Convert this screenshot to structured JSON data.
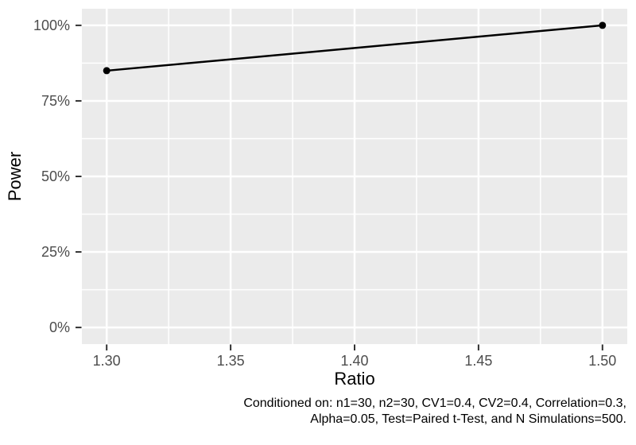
{
  "chart_data": {
    "type": "line",
    "title": "",
    "xlabel": "Ratio",
    "ylabel": "Power",
    "series": [
      {
        "name": "power",
        "points": [
          {
            "x": 1.3,
            "y_pct": 85
          },
          {
            "x": 1.5,
            "y_pct": 100
          }
        ]
      }
    ],
    "x_ticks": [
      {
        "value": 1.3,
        "label": "1.30"
      },
      {
        "value": 1.35,
        "label": "1.35"
      },
      {
        "value": 1.4,
        "label": "1.40"
      },
      {
        "value": 1.45,
        "label": "1.45"
      },
      {
        "value": 1.5,
        "label": "1.50"
      }
    ],
    "y_ticks": [
      {
        "value": 0,
        "label": "0%"
      },
      {
        "value": 25,
        "label": "25%"
      },
      {
        "value": 50,
        "label": "50%"
      },
      {
        "value": 75,
        "label": "75%"
      },
      {
        "value": 100,
        "label": "100%"
      }
    ],
    "x_minor": [
      1.325,
      1.375,
      1.425,
      1.475
    ],
    "y_minor": [
      12.5,
      37.5,
      62.5,
      87.5
    ],
    "xlim": [
      1.29,
      1.51
    ],
    "ylim_pct": [
      -5.5,
      105.5
    ],
    "grid": "major+minor",
    "legend": "none",
    "caption_line1": "Conditioned on: n1=30, n2=30, CV1=0.4, CV2=0.4, Correlation=0.3,",
    "caption_line2": "Alpha=0.05, Test=Paired t-Test, and N Simulations=500."
  },
  "colors": {
    "page_background": "#FFFFFF",
    "panel_background": "#EBEBEB",
    "grid_line": "#FFFFFF",
    "tick_mark": "#333333",
    "tick_text": "#4D4D4D",
    "axis_title": "#000000",
    "caption_text": "#000000",
    "line": "#000000",
    "point": "#000000"
  }
}
